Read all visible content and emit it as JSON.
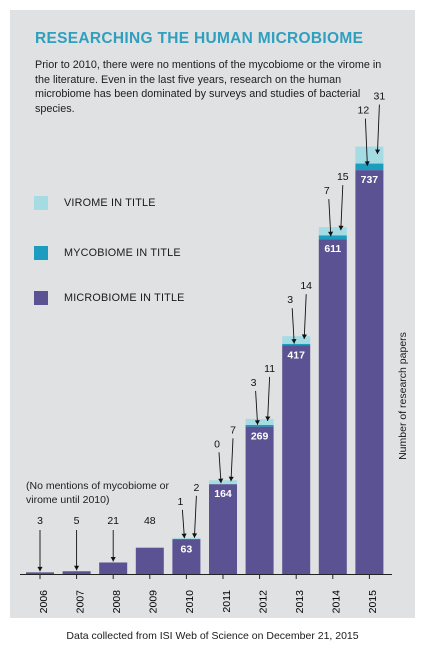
{
  "title": "RESEARCHING THE HUMAN MICROBIOME",
  "subtitle": "Prior to 2010, there were no mentions of the mycobiome or the virome in the literature. Even in the last five years, research on the human microbiome has been dominated by surveys and studies of bacterial species.",
  "note": "(No mentions of mycobiome or virome until 2010)",
  "y_axis_label": "Number of research papers",
  "footer": "Data collected from ISI Web of Science on December 21, 2015",
  "colors": {
    "microbiome": "#5a5292",
    "mycobiome": "#1c9dc0",
    "virome": "#a5dbe3",
    "background": "#dfe1e2"
  },
  "legend": [
    {
      "label": "VIROME IN TITLE",
      "series": "virome"
    },
    {
      "label": "MYCOBIOME IN TITLE",
      "series": "mycobiome"
    },
    {
      "label": "MICROBIOME IN TITLE",
      "series": "microbiome"
    }
  ],
  "chart_data": {
    "type": "bar",
    "stacked": true,
    "categories": [
      "2006",
      "2007",
      "2008",
      "2009",
      "2010",
      "2011",
      "2012",
      "2013",
      "2014",
      "2015"
    ],
    "series": [
      {
        "name": "MICROBIOME IN TITLE",
        "key": "microbiome",
        "values": [
          3,
          5,
          21,
          48,
          63,
          164,
          269,
          417,
          611,
          737
        ]
      },
      {
        "name": "MYCOBIOME IN TITLE",
        "key": "mycobiome",
        "values": [
          0,
          0,
          0,
          0,
          1,
          0,
          3,
          3,
          7,
          12
        ]
      },
      {
        "name": "VIROME IN TITLE",
        "key": "virome",
        "values": [
          0,
          0,
          0,
          0,
          2,
          7,
          11,
          14,
          15,
          31
        ]
      }
    ],
    "legend_position": "left",
    "grid": false
  }
}
